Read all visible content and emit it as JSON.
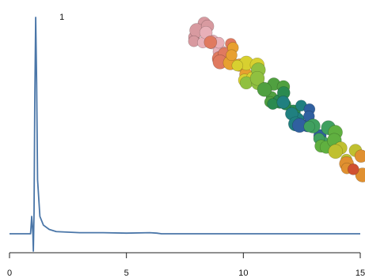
{
  "chart_data": {
    "type": "line",
    "annotations": [
      {
        "text": "1"
      }
    ],
    "series": [
      {
        "color": "#4a76a8",
        "x": [
          0,
          0.5,
          0.9,
          0.95,
          1.0,
          1.02,
          1.05,
          1.08,
          1.12,
          1.16,
          1.2,
          1.3,
          1.45,
          1.7,
          2.0,
          3,
          4,
          5,
          6,
          6.3,
          6.5,
          8,
          10,
          12,
          15
        ],
        "values": [
          0,
          0,
          0,
          8,
          0,
          -8,
          10,
          60,
          100,
          70,
          25,
          8,
          4,
          2,
          1,
          0.5,
          0.5,
          0.3,
          0.5,
          0.3,
          0,
          0,
          0,
          0,
          0
        ]
      }
    ],
    "xlim": [
      0,
      15
    ],
    "xticks": [
      0,
      5,
      10,
      15
    ],
    "ylim": [
      -10,
      105
    ]
  }
}
